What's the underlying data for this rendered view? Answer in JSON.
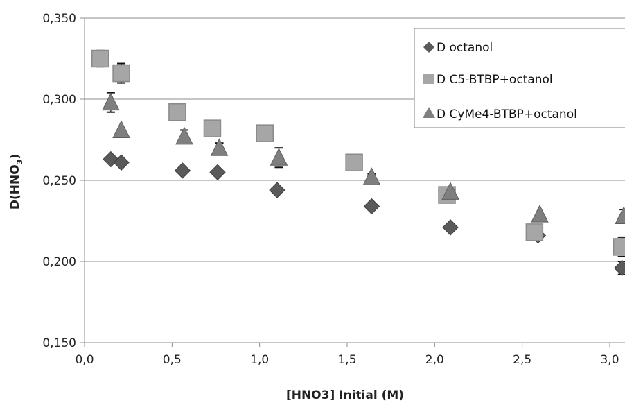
{
  "chart_data": {
    "type": "scatter",
    "xlabel": "[HNO3] Initial (M)",
    "ylabel_main": "D(HNO",
    "ylabel_sub": "3",
    "ylabel_close": ")",
    "xlim": [
      0.0,
      3.05
    ],
    "ylim": [
      0.15,
      0.35
    ],
    "x_ticks": [
      {
        "v": 0.0,
        "label": "0,0"
      },
      {
        "v": 0.5,
        "label": "0,5"
      },
      {
        "v": 1.0,
        "label": "1,0"
      },
      {
        "v": 1.5,
        "label": "1,5"
      },
      {
        "v": 2.0,
        "label": "2,0"
      },
      {
        "v": 2.5,
        "label": "2,5"
      },
      {
        "v": 3.0,
        "label": "3,0"
      }
    ],
    "y_ticks": [
      {
        "v": 0.15,
        "label": "0,150"
      },
      {
        "v": 0.2,
        "label": "0,200"
      },
      {
        "v": 0.25,
        "label": "0,250"
      },
      {
        "v": 0.3,
        "label": "0,300"
      },
      {
        "v": 0.35,
        "label": "0,350"
      }
    ],
    "grid": "horizontal",
    "legend_position": "top-right",
    "series": [
      {
        "name": "D octanol",
        "marker": "diamond",
        "color": "#5a5a5a",
        "points": [
          {
            "x": 0.15,
            "y": 0.263
          },
          {
            "x": 0.21,
            "y": 0.261
          },
          {
            "x": 0.56,
            "y": 0.256
          },
          {
            "x": 0.76,
            "y": 0.255
          },
          {
            "x": 1.1,
            "y": 0.244
          },
          {
            "x": 1.64,
            "y": 0.234
          },
          {
            "x": 2.09,
            "y": 0.221
          },
          {
            "x": 2.59,
            "y": 0.216
          },
          {
            "x": 3.07,
            "y": 0.196,
            "err": 0.004
          }
        ]
      },
      {
        "name": "D C5-BTBP+octanol",
        "marker": "square",
        "color": "#a6a6a6",
        "points": [
          {
            "x": 0.09,
            "y": 0.325,
            "err": 0.005
          },
          {
            "x": 0.21,
            "y": 0.316,
            "err": 0.006
          },
          {
            "x": 0.53,
            "y": 0.292
          },
          {
            "x": 0.73,
            "y": 0.282
          },
          {
            "x": 1.03,
            "y": 0.279
          },
          {
            "x": 1.54,
            "y": 0.261
          },
          {
            "x": 2.07,
            "y": 0.241
          },
          {
            "x": 2.57,
            "y": 0.218
          },
          {
            "x": 3.07,
            "y": 0.209,
            "err": 0.006
          }
        ]
      },
      {
        "name": "D CyMe4-BTBP+octanol",
        "marker": "triangle",
        "color": "#7f7f7f",
        "points": [
          {
            "x": 0.15,
            "y": 0.298,
            "err": 0.006
          },
          {
            "x": 0.21,
            "y": 0.281
          },
          {
            "x": 0.57,
            "y": 0.277,
            "err": 0.004
          },
          {
            "x": 0.77,
            "y": 0.27,
            "err": 0.003
          },
          {
            "x": 1.11,
            "y": 0.264,
            "err": 0.006
          },
          {
            "x": 1.64,
            "y": 0.252,
            "err": 0.002
          },
          {
            "x": 2.09,
            "y": 0.243
          },
          {
            "x": 2.6,
            "y": 0.229
          },
          {
            "x": 3.08,
            "y": 0.228,
            "err": 0.004
          }
        ]
      }
    ]
  }
}
